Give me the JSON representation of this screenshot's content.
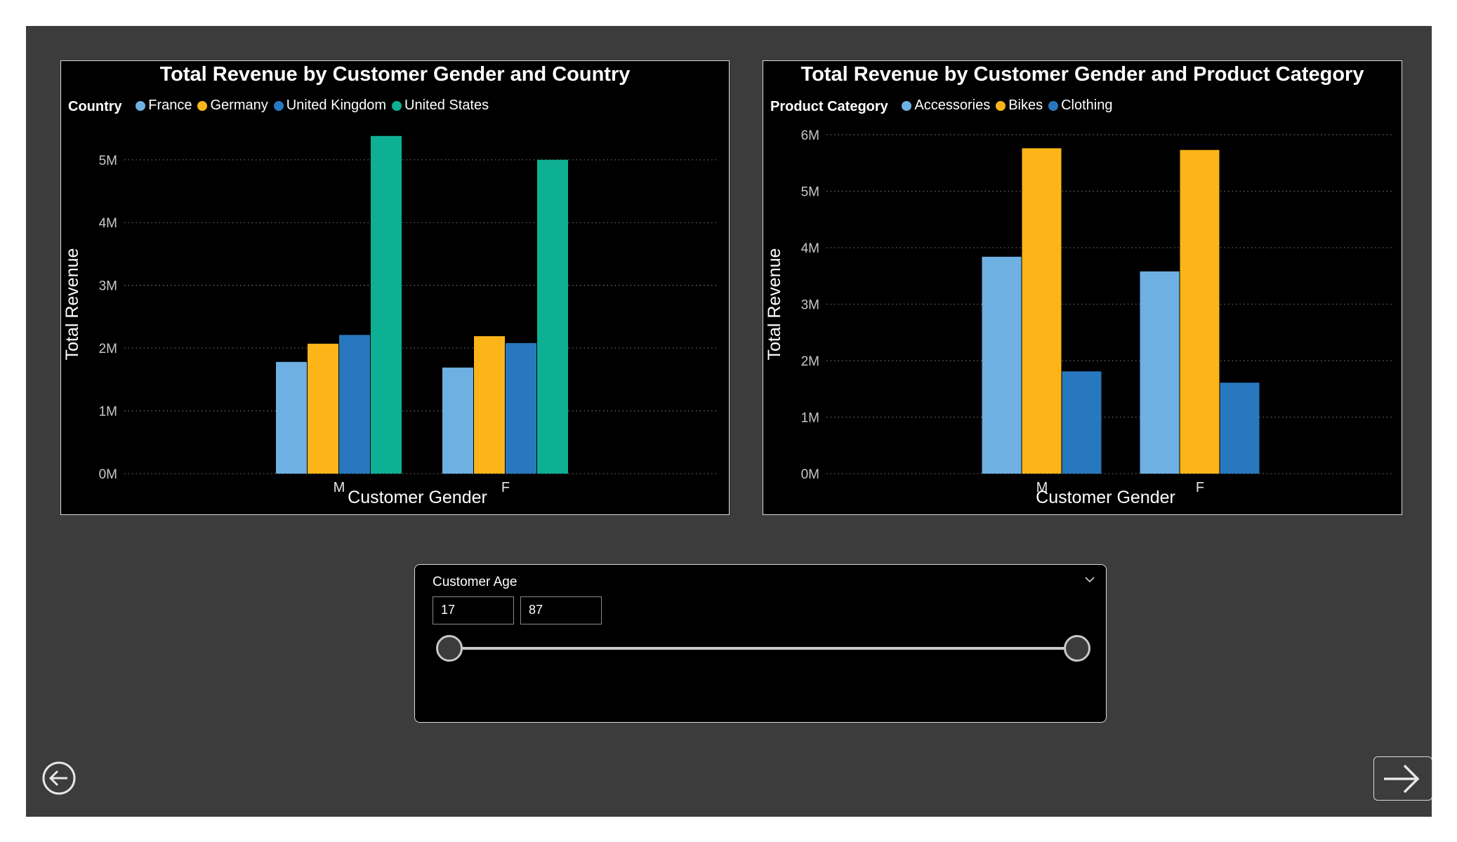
{
  "charts": [
    {
      "title": "Total Revenue by Customer Gender and Country",
      "legend_title": "Country",
      "chart_data": {
        "type": "bar",
        "title": "Total Revenue by Customer Gender and Country",
        "xlabel": "Customer Gender",
        "ylabel": "Total Revenue",
        "categories": [
          "M",
          "F"
        ],
        "ylim": [
          0,
          5400000
        ],
        "yticks": [
          0,
          1000000,
          2000000,
          3000000,
          4000000,
          5000000
        ],
        "ytick_labels": [
          "0M",
          "1M",
          "2M",
          "3M",
          "4M",
          "5M"
        ],
        "grid": true,
        "legend_position": "top-left",
        "series": [
          {
            "name": "France",
            "color": "#6eb0e2",
            "values": [
              1780000,
              1690000
            ]
          },
          {
            "name": "Germany",
            "color": "#fbb518",
            "values": [
              2070000,
              2190000
            ]
          },
          {
            "name": "United Kingdom",
            "color": "#2878c0",
            "values": [
              2210000,
              2080000
            ]
          },
          {
            "name": "United States",
            "color": "#0eb094",
            "values": [
              5380000,
              5000000
            ]
          }
        ]
      }
    },
    {
      "title": "Total Revenue by Customer Gender and Product Category",
      "legend_title": "Product Category",
      "chart_data": {
        "type": "bar",
        "title": "Total Revenue by Customer Gender and Product Category",
        "xlabel": "Customer Gender",
        "ylabel": "Total Revenue",
        "categories": [
          "M",
          "F"
        ],
        "ylim": [
          0,
          6000000
        ],
        "yticks": [
          0,
          1000000,
          2000000,
          3000000,
          4000000,
          5000000,
          6000000
        ],
        "ytick_labels": [
          "0M",
          "1M",
          "2M",
          "3M",
          "4M",
          "5M",
          "6M"
        ],
        "grid": true,
        "legend_position": "top-left",
        "series": [
          {
            "name": "Accessories",
            "color": "#6eb0e2",
            "values": [
              3840000,
              3580000
            ]
          },
          {
            "name": "Bikes",
            "color": "#fbb518",
            "values": [
              5760000,
              5730000
            ]
          },
          {
            "name": "Clothing",
            "color": "#2878c0",
            "values": [
              1810000,
              1610000
            ]
          }
        ]
      }
    }
  ],
  "slicer": {
    "title": "Customer Age",
    "min_value": "17",
    "max_value": "87",
    "chevron_icon": "chevron-down-icon"
  },
  "navigation": {
    "back_icon": "back-arrow-circle-icon",
    "next_icon": "next-arrow-icon"
  }
}
